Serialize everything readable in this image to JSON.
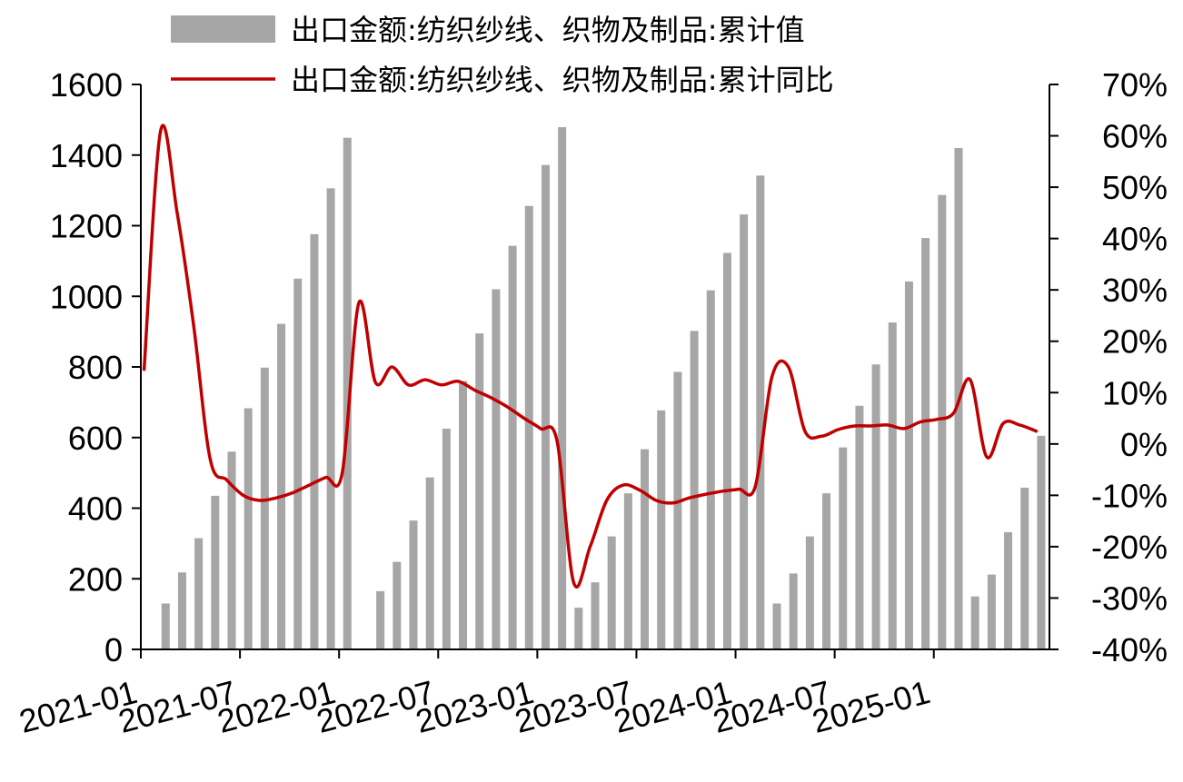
{
  "chart_data": {
    "type": "bar+line",
    "title": "",
    "xlabel": "",
    "ylabel_left": "",
    "ylabel_right": "",
    "y_left_lim": [
      0,
      1600
    ],
    "y_right_lim": [
      -40,
      70
    ],
    "y_left_ticks": [
      "0",
      "200",
      "400",
      "600",
      "800",
      "1000",
      "1200",
      "1400",
      "1600"
    ],
    "y_right_ticks": [
      "-40%",
      "-30%",
      "-20%",
      "-10%",
      "0%",
      "10%",
      "20%",
      "30%",
      "40%",
      "50%",
      "60%",
      "70%"
    ],
    "x_tick_labels": [
      "2021-01",
      "2021-07",
      "2022-01",
      "2022-07",
      "2023-01",
      "2023-07",
      "2024-01",
      "2024-07",
      "2025-01"
    ],
    "legend_position": "top",
    "grid": false,
    "series": [
      {
        "name": "出口金额:纺织纱线、织物及制品:累计值",
        "type": "bar",
        "axis": "left",
        "color": "#a6a6a6",
        "points": [
          [
            "2021-02",
            130
          ],
          [
            "2021-03",
            218
          ],
          [
            "2021-04",
            315
          ],
          [
            "2021-05",
            435
          ],
          [
            "2021-06",
            560
          ],
          [
            "2021-07",
            683
          ],
          [
            "2021-08",
            798
          ],
          [
            "2021-09",
            922
          ],
          [
            "2021-10",
            1050
          ],
          [
            "2021-11",
            1176
          ],
          [
            "2021-12",
            1306
          ],
          [
            "2022-01",
            1449
          ],
          [
            "2022-03",
            165
          ],
          [
            "2022-04",
            248
          ],
          [
            "2022-05",
            365
          ],
          [
            "2022-06",
            487
          ],
          [
            "2022-07",
            625
          ],
          [
            "2022-08",
            760
          ],
          [
            "2022-09",
            895
          ],
          [
            "2022-10",
            1020
          ],
          [
            "2022-11",
            1143
          ],
          [
            "2022-12",
            1256
          ],
          [
            "2023-01",
            1372
          ],
          [
            "2023-02",
            1479
          ],
          [
            "2023-03",
            118
          ],
          [
            "2023-04",
            190
          ],
          [
            "2023-05",
            320
          ],
          [
            "2023-06",
            442
          ],
          [
            "2023-07",
            567
          ],
          [
            "2023-08",
            677
          ],
          [
            "2023-09",
            786
          ],
          [
            "2023-10",
            902
          ],
          [
            "2023-11",
            1017
          ],
          [
            "2023-12",
            1123
          ],
          [
            "2024-01",
            1232
          ],
          [
            "2024-02",
            1342
          ],
          [
            "2024-03",
            130
          ],
          [
            "2024-04",
            215
          ],
          [
            "2024-05",
            320
          ],
          [
            "2024-06",
            442
          ],
          [
            "2024-07",
            572
          ],
          [
            "2024-08",
            690
          ],
          [
            "2024-09",
            807
          ],
          [
            "2024-10",
            926
          ],
          [
            "2024-11",
            1042
          ],
          [
            "2024-12",
            1165
          ],
          [
            "2025-01",
            1287
          ],
          [
            "2025-02",
            1420
          ],
          [
            "2025-03",
            150
          ],
          [
            "2025-04",
            212
          ],
          [
            "2025-05",
            332
          ],
          [
            "2025-06",
            458
          ],
          [
            "2025-07",
            605
          ]
        ]
      },
      {
        "name": "出口金额:纺织纱线、织物及制品:累计同比",
        "type": "line",
        "axis": "right",
        "color": "#c00000",
        "points": [
          [
            "2021-01",
            14.5
          ],
          [
            "2021-02",
            61
          ],
          [
            "2021-03",
            45
          ],
          [
            "2021-04",
            23
          ],
          [
            "2021-05",
            -3
          ],
          [
            "2021-06",
            -7
          ],
          [
            "2021-07",
            -10
          ],
          [
            "2021-08",
            -11
          ],
          [
            "2021-09",
            -10.5
          ],
          [
            "2021-10",
            -9.5
          ],
          [
            "2021-11",
            -8
          ],
          [
            "2021-12",
            -6.5
          ],
          [
            "2022-01",
            -5.5
          ],
          [
            "2022-02",
            27.5
          ],
          [
            "2022-03",
            12
          ],
          [
            "2022-04",
            15
          ],
          [
            "2022-05",
            11.5
          ],
          [
            "2022-06",
            12.5
          ],
          [
            "2022-07",
            11.5
          ],
          [
            "2022-08",
            12.2
          ],
          [
            "2022-09",
            10.5
          ],
          [
            "2022-10",
            9
          ],
          [
            "2022-11",
            7.2
          ],
          [
            "2022-12",
            5
          ],
          [
            "2023-01",
            3
          ],
          [
            "2023-02",
            0.5
          ],
          [
            "2023-03",
            -27
          ],
          [
            "2023-04",
            -20
          ],
          [
            "2023-05",
            -11
          ],
          [
            "2023-06",
            -8
          ],
          [
            "2023-07",
            -9
          ],
          [
            "2023-08",
            -11
          ],
          [
            "2023-09",
            -11.5
          ],
          [
            "2023-10",
            -10.5
          ],
          [
            "2023-11",
            -9.8
          ],
          [
            "2023-12",
            -9.2
          ],
          [
            "2024-01",
            -8.8
          ],
          [
            "2024-02",
            -8.2
          ],
          [
            "2024-03",
            13
          ],
          [
            "2024-04",
            15
          ],
          [
            "2024-05",
            2.5
          ],
          [
            "2024-06",
            1.5
          ],
          [
            "2024-07",
            2.8
          ],
          [
            "2024-08",
            3.5
          ],
          [
            "2024-09",
            3.5
          ],
          [
            "2024-10",
            3.7
          ],
          [
            "2024-11",
            3
          ],
          [
            "2024-12",
            4.3
          ],
          [
            "2025-01",
            4.8
          ],
          [
            "2025-02",
            6
          ],
          [
            "2025-03",
            12.5
          ],
          [
            "2025-04",
            -2.5
          ],
          [
            "2025-05",
            4
          ],
          [
            "2025-06",
            3.7
          ],
          [
            "2025-07",
            2.5
          ]
        ]
      }
    ]
  }
}
